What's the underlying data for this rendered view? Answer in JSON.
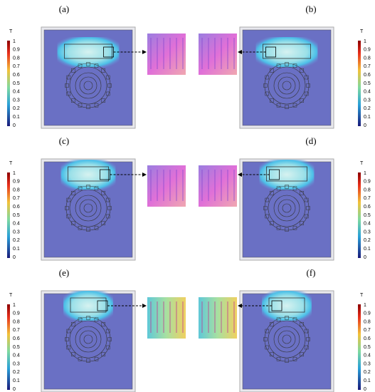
{
  "panels": [
    {
      "label": "(a)"
    },
    {
      "label": "(b)"
    },
    {
      "label": "(c)"
    },
    {
      "label": "(d)"
    },
    {
      "label": "(e)"
    },
    {
      "label": "(f)"
    }
  ],
  "colorbar": {
    "title": "T",
    "ticks": [
      1,
      0.9,
      0.8,
      0.7,
      0.6,
      0.5,
      0.4,
      0.3,
      0.2,
      0.1,
      0
    ]
  }
}
